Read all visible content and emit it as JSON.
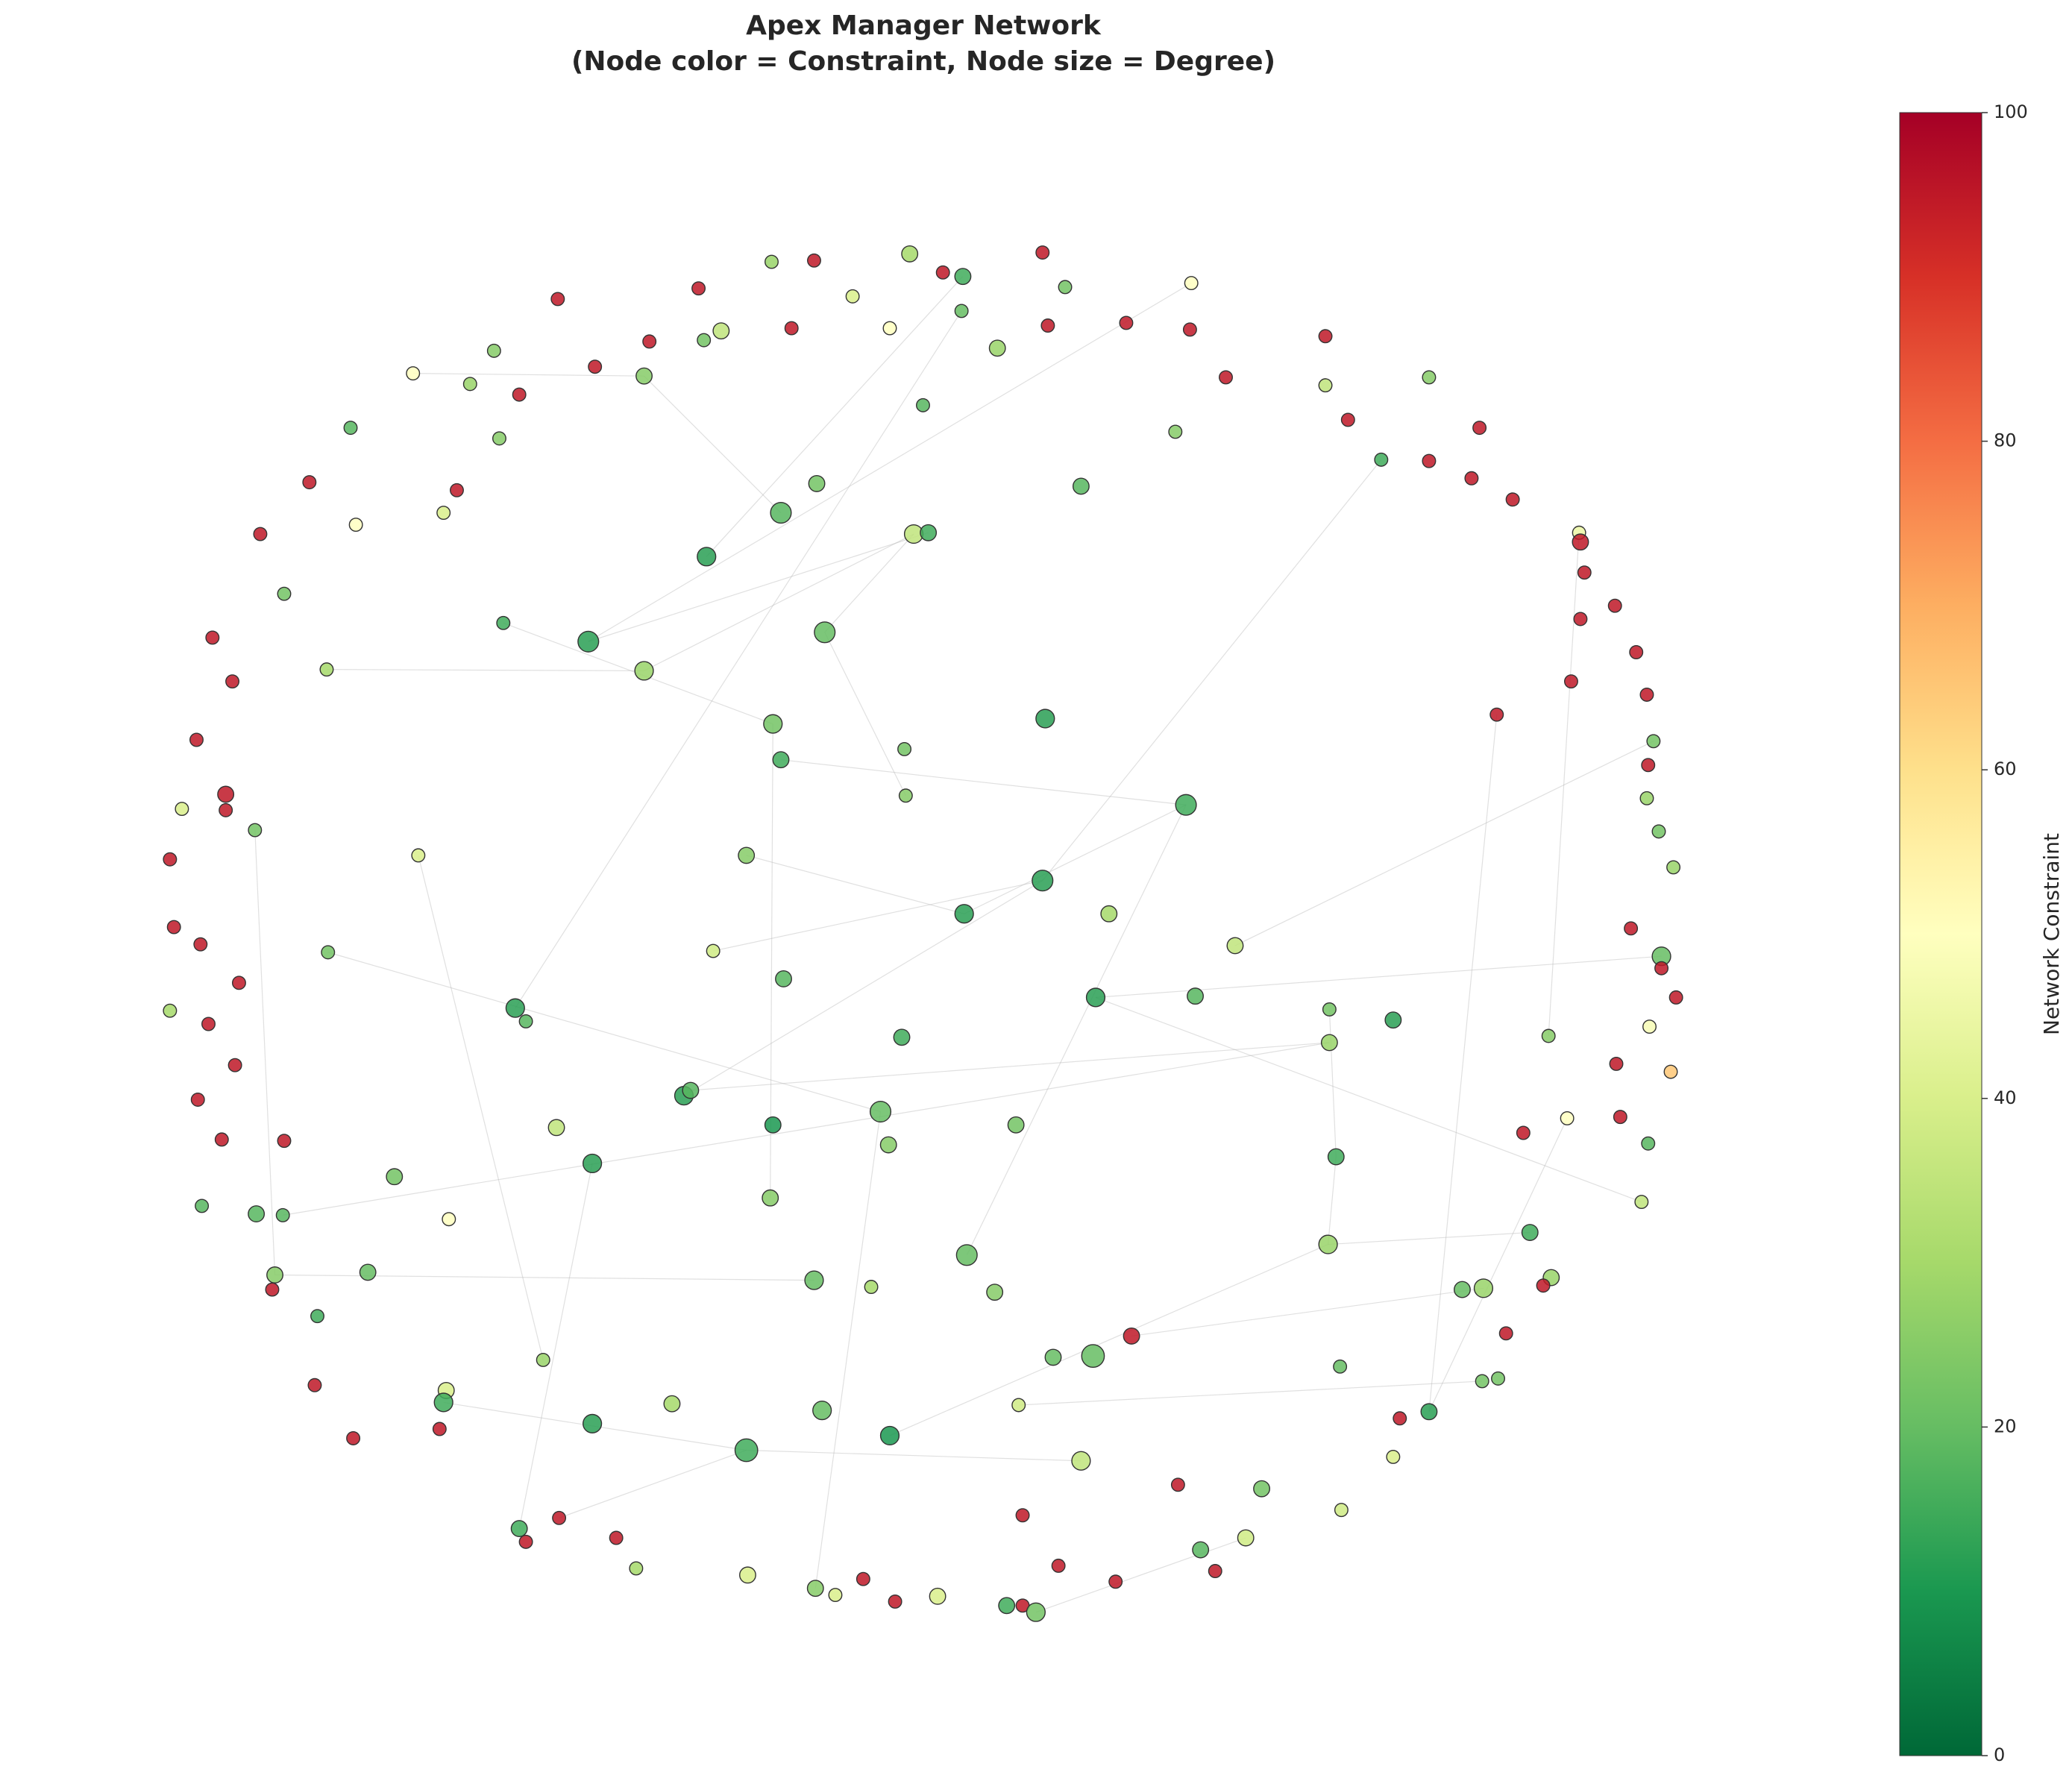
{
  "chart_data": {
    "type": "network",
    "title": "Apex Manager Network",
    "subtitle": "(Node color = Constraint, Node size = Degree)",
    "xlim": [
      100,
      1290
    ],
    "ylim": [
      1240,
      170
    ],
    "nodes": {
      "x": [
        685,
        725,
        785,
        613,
        581,
        710,
        802,
        897,
        642,
        420,
        526,
        724,
        543,
        530,
        489,
        596,
        670,
        751,
        789,
        848,
        896,
        998,
        372,
        311,
        354,
        448,
        485,
        391,
        923,
        998,
        1076,
        264,
        376,
        695,
        1015,
        1114,
        885,
        1040,
        1076,
        233,
        344,
        615,
        814,
        1108,
        1139,
        334,
        268,
        196,
        588,
        688,
        699,
        1189,
        1190,
        532,
        1193,
        214,
        379,
        1216,
        1190,
        443,
        621,
        160,
        1232,
        485,
        246,
        175,
        1183,
        1240,
        1127,
        582,
        787,
        148,
        1245,
        681,
        588,
        1241,
        170,
        137,
        170,
        682,
        893,
        1240,
        192,
        1249,
        315,
        562,
        128,
        1260,
        785,
        726,
        835,
        131,
        151,
        930,
        537,
        247,
        1228,
        1251,
        1251,
        180,
        590,
        825,
        900,
        388,
        396,
        1001,
        1262,
        128,
        1049,
        157,
        679,
        1166,
        1001,
        1242,
        177,
        1217,
        1258,
        515,
        520,
        149,
        663,
        419,
        582,
        765,
        1180,
        1220,
        1147,
        167,
        214,
        669,
        1241,
        446,
        1006,
        297,
        152,
        580,
        1236,
        193,
        213,
        338,
        1152,
        728,
        1000,
        277,
        207,
        613,
        656,
        749,
        1101,
        1117,
        1168,
        1162,
        205,
        239,
        852,
        1134,
        409,
        793,
        823,
        1009,
        237,
        336,
        334,
        506,
        619,
        767,
        1116,
        1128,
        446,
        1076,
        1054,
        266,
        331,
        670,
        562,
        814,
        1049,
        887,
        950,
        770,
        421,
        1010,
        391,
        464,
        396,
        938,
        904,
        479,
        797,
        563,
        650,
        915,
        840,
        614,
        629,
        706,
        674,
        758,
        770,
        780
      ],
      "y": [
        191,
        208,
        190,
        196,
        197,
        205,
        216,
        213,
        223,
        225,
        217,
        234,
        249,
        256,
        257,
        247,
        247,
        262,
        245,
        243,
        248,
        253,
        264,
        281,
        289,
        276,
        283,
        297,
        284,
        290,
        284,
        322,
        330,
        305,
        316,
        322,
        325,
        346,
        347,
        363,
        369,
        364,
        366,
        360,
        376,
        386,
        395,
        402,
        386,
        402,
        401,
        401,
        408,
        419,
        431,
        447,
        469,
        456,
        466,
        483,
        476,
        480,
        491,
        505,
        504,
        513,
        513,
        523,
        538,
        545,
        541,
        557,
        558,
        564,
        572,
        576,
        598,
        609,
        610,
        599,
        606,
        601,
        625,
        626,
        644,
        644,
        647,
        653,
        663,
        688,
        688,
        698,
        711,
        712,
        716,
        717,
        699,
        720,
        729,
        740,
        737,
        751,
        750,
        759,
        769,
        760,
        751,
        761,
        768,
        771,
        781,
        780,
        785,
        773,
        802,
        801,
        807,
        825,
        821,
        828,
        837,
        849,
        847,
        847,
        842,
        841,
        853,
        858,
        859,
        862,
        861,
        876,
        871,
        886,
        908,
        902,
        905,
        914,
        915,
        918,
        928,
        945,
        937,
        958,
        960,
        964,
        969,
        973,
        971,
        970,
        962,
        968,
        971,
        991,
        1006,
        1004,
        1024,
        1022,
        1021,
        1029,
        1043,
        1047,
        1056,
        1057,
        1062,
        1058,
        1040,
        1038,
        1072,
        1063,
        1068,
        1083,
        1076,
        1081,
        1092,
        1100,
        1097,
        1118,
        1121,
        1141,
        1143,
        1137,
        1151,
        1158,
        1161,
        1158,
        1167,
        1181,
        1179,
        1186,
        1189,
        1183,
        1191,
        1196,
        1201,
        1202,
        1206,
        1209,
        1209,
        1214
      ],
      "constraint": [
        30,
        15,
        95,
        95,
        28,
        95,
        22,
        50,
        40,
        95,
        95,
        20,
        35,
        22,
        95,
        95,
        50,
        28,
        95,
        95,
        95,
        95,
        25,
        50,
        28,
        95,
        25,
        95,
        95,
        35,
        25,
        18,
        25,
        18,
        95,
        95,
        25,
        15,
        95,
        95,
        95,
        22,
        18,
        95,
        95,
        40,
        50,
        95,
        18,
        35,
        15,
        45,
        95,
        12,
        95,
        22,
        15,
        95,
        95,
        12,
        20,
        95,
        95,
        28,
        30,
        95,
        95,
        95,
        95,
        22,
        12,
        95,
        22,
        22,
        15,
        95,
        95,
        40,
        95,
        25,
        15,
        28,
        22,
        22,
        40,
        25,
        95,
        28,
        12,
        12,
        30,
        95,
        95,
        35,
        38,
        22,
        95,
        20,
        95,
        95,
        18,
        12,
        18,
        12,
        18,
        22,
        95,
        30,
        12,
        95,
        15,
        25,
        28,
        48,
        95,
        95,
        65,
        12,
        18,
        95,
        20,
        35,
        10,
        22,
        50,
        95,
        95,
        95,
        95,
        25,
        18,
        12,
        15,
        22,
        18,
        25,
        35,
        18,
        18,
        50,
        15,
        20,
        28,
        20,
        25,
        20,
        30,
        25,
        20,
        28,
        28,
        95,
        95,
        15,
        95,
        95,
        28,
        20,
        20,
        20,
        95,
        40,
        15,
        30,
        20,
        38,
        22,
        22,
        12,
        12,
        95,
        95,
        95,
        10,
        15,
        35,
        40,
        95,
        22,
        95,
        95,
        38,
        15,
        95,
        95,
        38,
        18,
        30,
        95,
        40,
        95,
        95,
        95,
        25,
        40,
        40,
        95,
        15,
        95,
        22
      ],
      "degree": [
        3,
        3,
        2,
        2,
        2,
        2,
        2,
        2,
        2,
        2,
        2,
        2,
        3,
        2,
        2,
        2,
        2,
        3,
        2,
        2,
        2,
        2,
        2,
        2,
        2,
        2,
        3,
        2,
        2,
        2,
        2,
        2,
        2,
        2,
        2,
        2,
        2,
        2,
        2,
        2,
        2,
        3,
        3,
        2,
        2,
        2,
        2,
        2,
        5,
        4,
        3,
        2,
        3,
        4,
        2,
        2,
        2,
        2,
        2,
        5,
        5,
        2,
        2,
        4,
        2,
        2,
        2,
        2,
        2,
        4,
        4,
        2,
        2,
        2,
        3,
        2,
        3,
        2,
        2,
        2,
        5,
        2,
        2,
        2,
        2,
        3,
        2,
        2,
        5,
        4,
        3,
        2,
        2,
        3,
        2,
        2,
        2,
        4,
        2,
        2,
        3,
        4,
        3,
        4,
        2,
        2,
        2,
        2,
        3,
        2,
        3,
        2,
        3,
        2,
        2,
        2,
        2,
        4,
        3,
        2,
        5,
        3,
        3,
        3,
        2,
        2,
        2,
        2,
        2,
        3,
        2,
        4,
        3,
        3,
        2,
        3,
        2,
        3,
        2,
        2,
        3,
        5,
        4,
        3,
        3,
        4,
        2,
        3,
        3,
        4,
        3,
        2,
        2,
        2,
        3,
        2,
        2,
        3,
        6,
        2,
        2,
        3,
        4,
        3,
        4,
        2,
        2,
        2,
        4,
        3,
        2,
        2,
        2,
        4,
        6,
        4,
        2,
        2,
        3,
        2,
        2,
        2,
        3,
        2,
        2,
        3,
        3,
        2,
        2,
        3,
        2,
        2,
        2,
        3,
        2,
        3,
        2,
        3,
        2,
        4
      ]
    },
    "edges": [
      [
        23,
        26
      ],
      [
        26,
        48
      ],
      [
        64,
        63
      ],
      [
        59,
        50
      ],
      [
        63,
        49
      ],
      [
        56,
        69
      ],
      [
        74,
        80
      ],
      [
        80,
        89
      ],
      [
        89,
        85
      ],
      [
        88,
        37
      ],
      [
        95,
        120
      ],
      [
        94,
        88
      ],
      [
        93,
        72
      ],
      [
        97,
        101
      ],
      [
        101,
        136
      ],
      [
        138,
        112
      ],
      [
        144,
        145
      ],
      [
        162,
        174
      ],
      [
        174,
        175
      ],
      [
        165,
        166
      ],
      [
        154,
        149
      ],
      [
        142,
        140
      ],
      [
        173,
        142
      ],
      [
        199,
        185
      ],
      [
        124,
        169
      ],
      [
        51,
        111
      ],
      [
        193,
        120
      ],
      [
        180,
        174
      ],
      [
        182,
        131
      ],
      [
        103,
        11
      ],
      [
        53,
        1
      ],
      [
        60,
        49
      ],
      [
        60,
        79
      ],
      [
        59,
        7
      ],
      [
        82,
        144
      ],
      [
        141,
        80
      ],
      [
        117,
        88
      ],
      [
        118,
        112
      ],
      [
        135,
        69
      ],
      [
        84,
        156
      ],
      [
        105,
        132
      ],
      [
        132,
        142
      ],
      [
        68,
        169
      ]
    ],
    "colorbar": {
      "label": "Network Constraint",
      "colormap": "RdYlGn_r",
      "lim": [
        0,
        100
      ],
      "ticks": [
        0,
        20,
        40,
        60,
        80,
        100
      ]
    }
  }
}
